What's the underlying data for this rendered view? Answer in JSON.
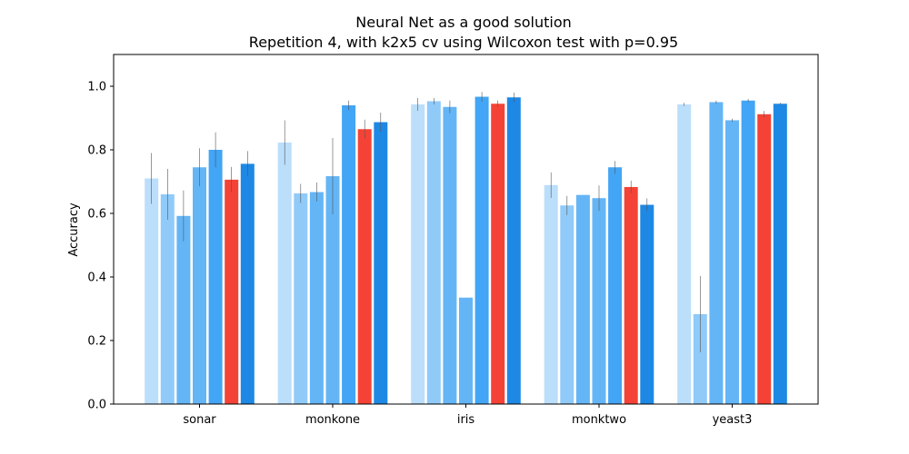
{
  "chart_data": {
    "type": "bar",
    "title": "Neural Net as a good solution",
    "subtitle": "Repetition 4, with k2x5 cv using Wilcoxon test with p=0.95",
    "xlabel": "",
    "ylabel": "Accuracy",
    "ylim": [
      0,
      1.1
    ],
    "yticks": [
      "0.0",
      "0.2",
      "0.4",
      "0.6",
      "0.8",
      "1.0"
    ],
    "grid": false,
    "categories": [
      "sonar",
      "monkone",
      "iris",
      "monktwo",
      "yeast3"
    ],
    "bar_colors": [
      "#bbdefb",
      "#90caf9",
      "#64b5f6",
      "#64b5f6",
      "#42a5f5",
      "#f44336",
      "#1e88e5",
      "#1e88e5"
    ],
    "series": [
      {
        "values": [
          0.71,
          0.823,
          0.943,
          0.689,
          0.943
        ],
        "errors": [
          0.08,
          0.07,
          0.02,
          0.04,
          0.005
        ]
      },
      {
        "values": [
          0.66,
          0.663,
          0.953,
          0.625,
          0.283
        ],
        "errors": [
          0.08,
          0.03,
          0.01,
          0.03,
          0.12
        ]
      },
      {
        "values": [
          0.592,
          0.667,
          0.935,
          0.658,
          0.95
        ],
        "errors": [
          0.08,
          0.03,
          0.02,
          0.0,
          0.005
        ]
      },
      {
        "values": [
          0.745,
          0.717,
          0.335,
          0.648,
          0.893
        ],
        "errors": [
          0.06,
          0.12,
          0.0,
          0.04,
          0.005
        ]
      },
      {
        "values": [
          0.8,
          0.94,
          0.967,
          0.745,
          0.955
        ],
        "errors": [
          0.055,
          0.015,
          0.015,
          0.02,
          0.005
        ]
      },
      {
        "values": [
          0.706,
          0.865,
          0.945,
          0.683,
          0.912
        ],
        "errors": [
          0.04,
          0.03,
          0.01,
          0.02,
          0.01
        ]
      },
      {
        "values": [
          0.756,
          0.887,
          0.965,
          0.627,
          0.945
        ],
        "errors": [
          0.04,
          0.03,
          0.015,
          0.02,
          0.003
        ]
      }
    ]
  }
}
